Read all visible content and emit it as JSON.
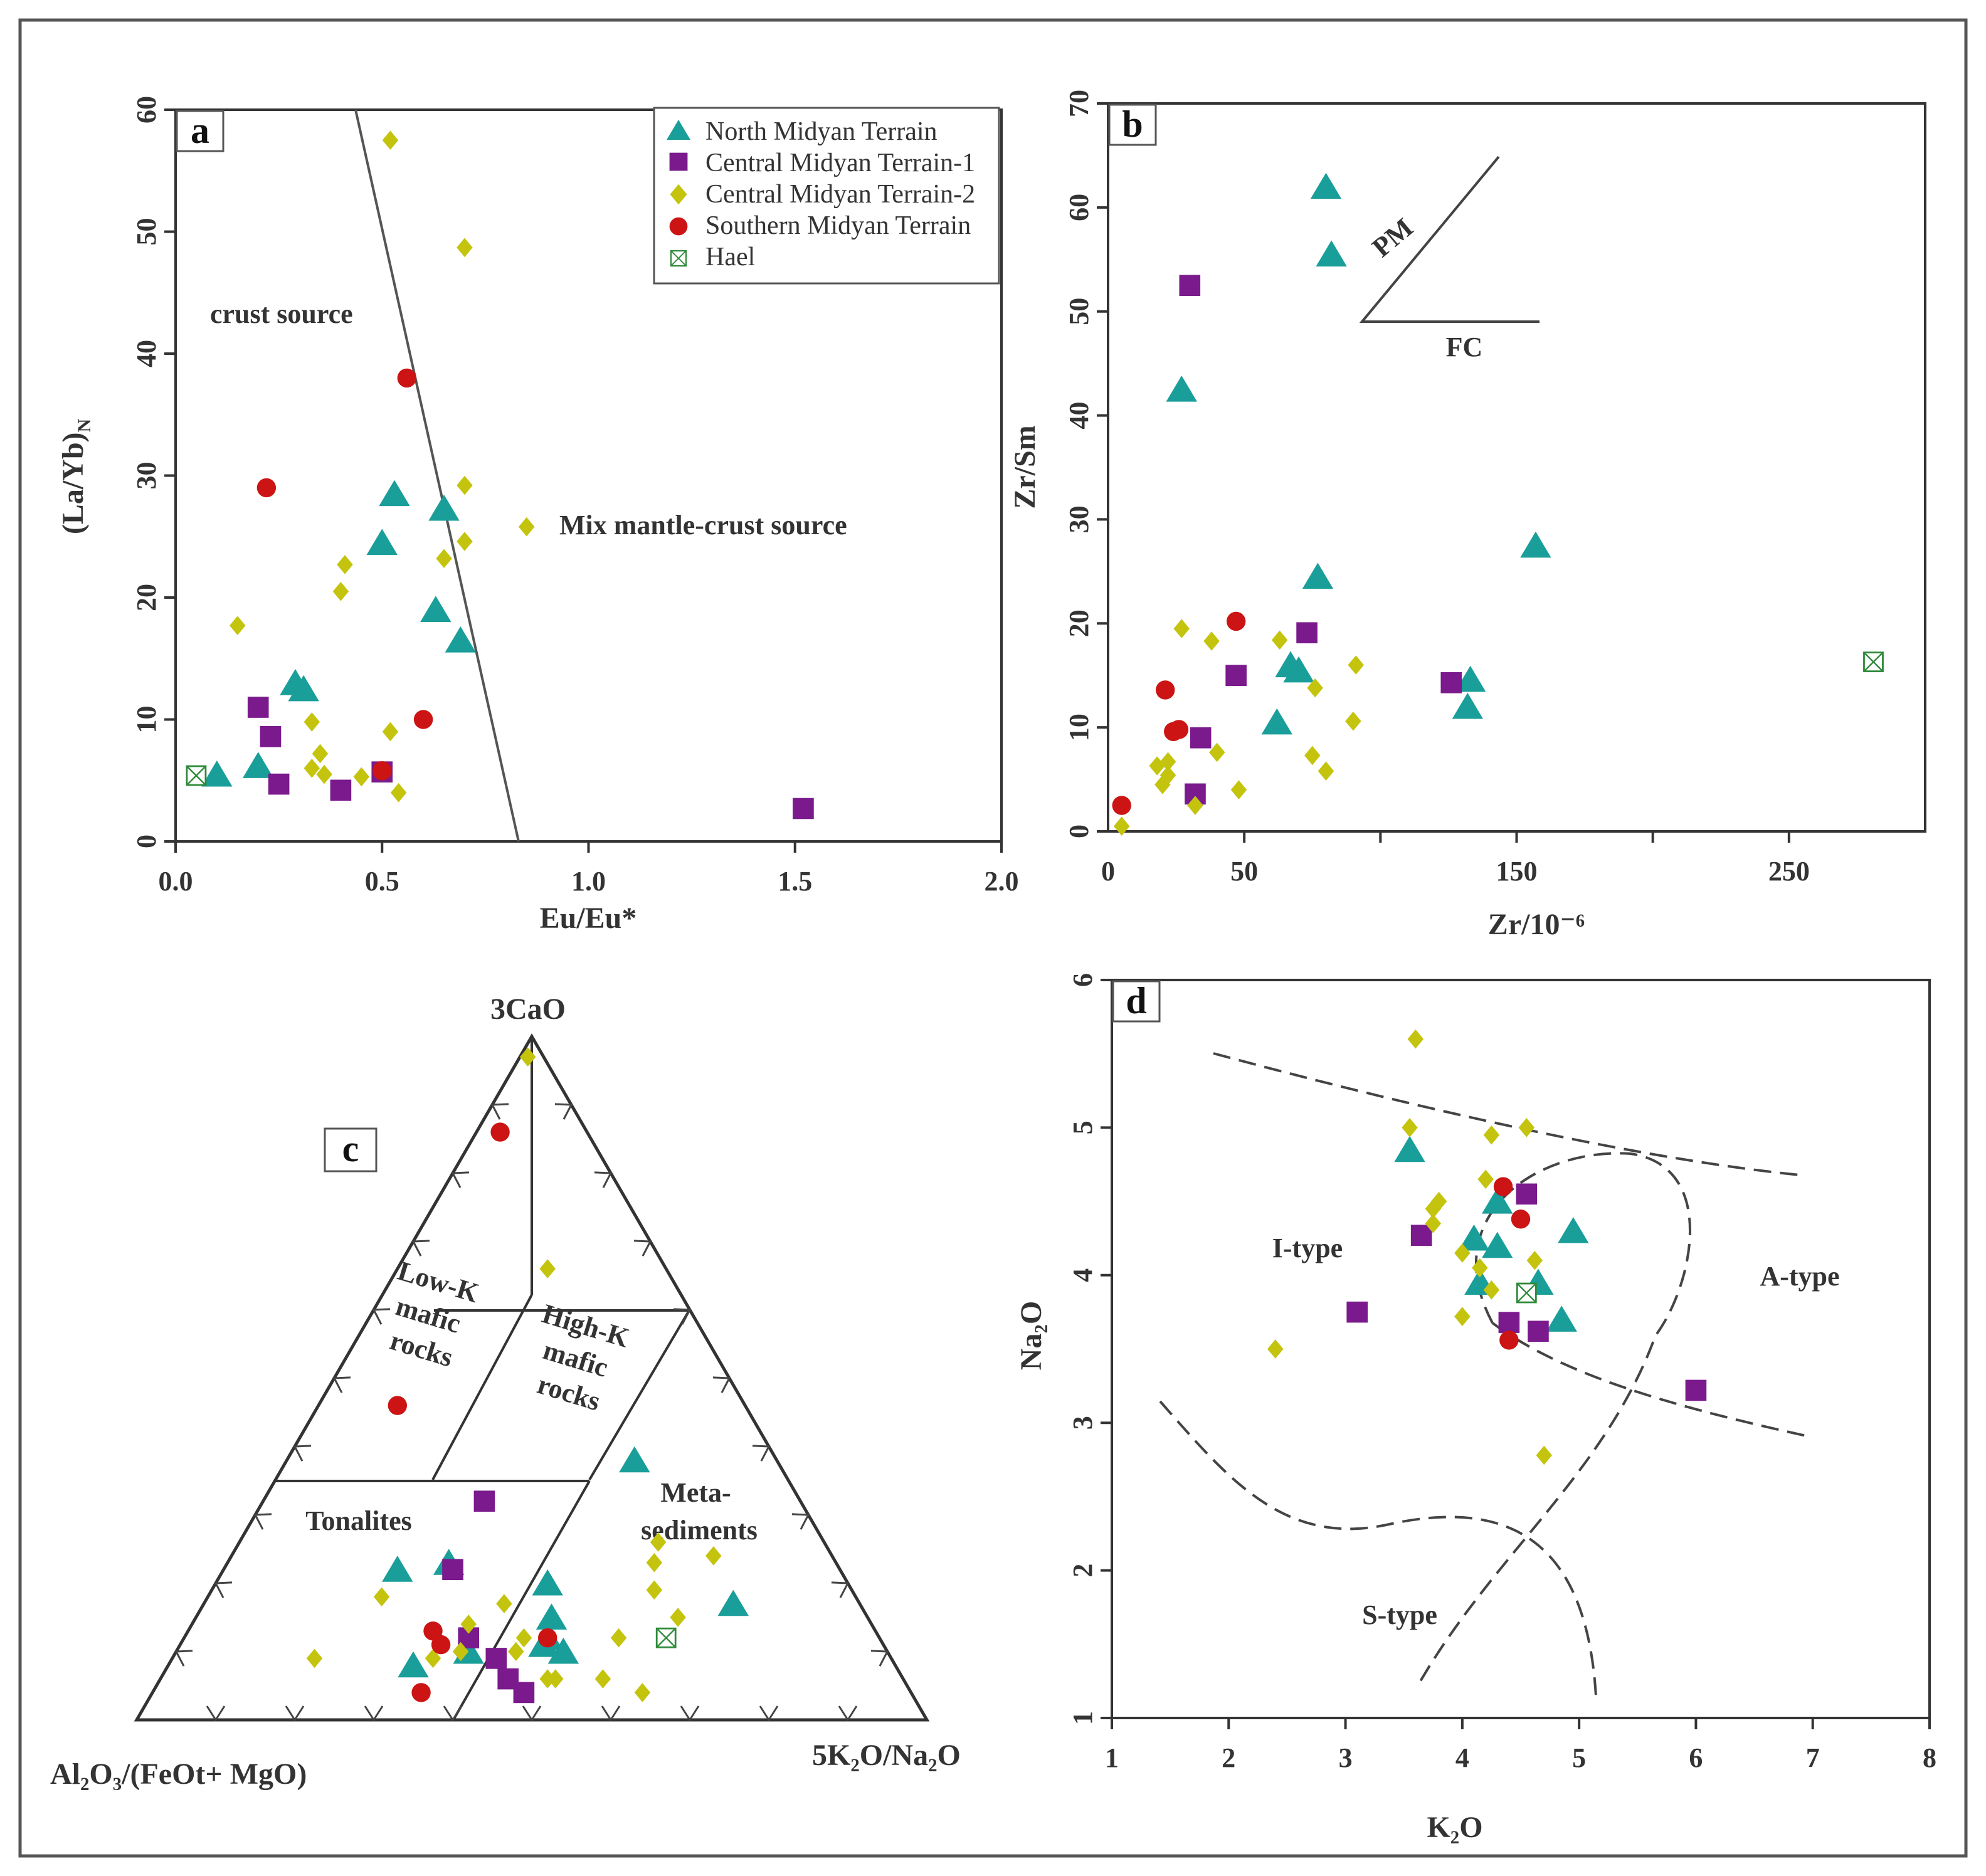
{
  "colors": {
    "north": "#1a9e9a",
    "central1": "#7a1a8c",
    "central2": "#c4c40e",
    "southern": "#cc1414",
    "hael": "#2f8a3a",
    "axis": "#333333"
  },
  "legend": {
    "north": "North Midyan Terrain",
    "central1": "Central Midyan Terrain-1",
    "central2": "Central Midyan Terrain-2",
    "southern": "Southern Midyan Terrain",
    "hael": "Hael"
  },
  "chart_data": [
    {
      "panel": "a",
      "type": "scatter",
      "xlabel": "Eu/Eu*",
      "ylabel": "(La/Yb)",
      "ylabel_sub": "N",
      "xlim": [
        0,
        2
      ],
      "ylim": [
        0,
        60
      ],
      "xticks": [
        "0.0",
        "0.5",
        "1.0",
        "1.5",
        "2.0"
      ],
      "yticks": [
        "0",
        "10",
        "20",
        "30",
        "40",
        "50",
        "60"
      ],
      "boundary_line": [
        [
          0.45,
          60
        ],
        [
          0.84,
          0
        ]
      ],
      "region_labels": {
        "crust": "crust source",
        "mix": "Mix mantle-crust source"
      },
      "series": [
        {
          "name": "North Midyan Terrain",
          "group": "north",
          "points": [
            [
              0.1,
              5.5
            ],
            [
              0.2,
              6.2
            ],
            [
              0.29,
              13
            ],
            [
              0.31,
              12.5
            ],
            [
              0.5,
              24.5
            ],
            [
              0.53,
              28.5
            ],
            [
              0.63,
              19
            ],
            [
              0.65,
              27.3
            ],
            [
              0.69,
              16.5
            ]
          ]
        },
        {
          "name": "Central Midyan Terrain-1",
          "group": "central1",
          "points": [
            [
              0.2,
              11
            ],
            [
              0.23,
              8.6
            ],
            [
              0.25,
              4.7
            ],
            [
              0.4,
              4.2
            ],
            [
              0.5,
              5.7
            ],
            [
              1.52,
              2.7
            ]
          ]
        },
        {
          "name": "Central Midyan Terrain-2",
          "group": "central2",
          "points": [
            [
              0.15,
              17.7
            ],
            [
              0.33,
              9.8
            ],
            [
              0.33,
              6
            ],
            [
              0.35,
              7.2
            ],
            [
              0.36,
              5.5
            ],
            [
              0.4,
              20.5
            ],
            [
              0.41,
              22.7
            ],
            [
              0.45,
              5.3
            ],
            [
              0.52,
              57.5
            ],
            [
              0.52,
              9
            ],
            [
              0.54,
              4
            ],
            [
              0.65,
              23.2
            ],
            [
              0.7,
              29.2
            ],
            [
              0.7,
              24.6
            ],
            [
              0.7,
              48.7
            ],
            [
              0.85,
              25.8
            ]
          ]
        },
        {
          "name": "Southern Midyan Terrain",
          "group": "southern",
          "points": [
            [
              0.22,
              29
            ],
            [
              0.5,
              5.8
            ],
            [
              0.56,
              38
            ],
            [
              0.6,
              10
            ]
          ]
        },
        {
          "name": "Hael",
          "group": "hael",
          "points": [
            [
              0.05,
              5.4
            ]
          ]
        }
      ]
    },
    {
      "panel": "b",
      "type": "scatter",
      "xlabel": "Zr/10⁻⁶",
      "ylabel": "Zr/Sm",
      "xlim": [
        0,
        300
      ],
      "ylim": [
        0,
        70
      ],
      "xticks": [
        "0",
        "50",
        "150",
        "250"
      ],
      "xtick_values": [
        0,
        50,
        150,
        250
      ],
      "xtick_marks": [
        50,
        100,
        150,
        200,
        250
      ],
      "yticks": [
        "0",
        "10",
        "20",
        "30",
        "40",
        "50",
        "60",
        "70"
      ],
      "trend_labels": {
        "pm": "PM",
        "fc": "FC"
      },
      "series": [
        {
          "name": "North Midyan Terrain",
          "group": "north",
          "points": [
            [
              27,
              42.5
            ],
            [
              67,
              16
            ],
            [
              70,
              15.5
            ],
            [
              62,
              10.5
            ],
            [
              77,
              24.5
            ],
            [
              80,
              62
            ],
            [
              82,
              55.5
            ],
            [
              132,
              12
            ],
            [
              133,
              14.6
            ],
            [
              157,
              27.5
            ]
          ]
        },
        {
          "name": "Central Midyan Terrain-1",
          "group": "central1",
          "points": [
            [
              30,
              52.5
            ],
            [
              32,
              3.6
            ],
            [
              34,
              9
            ],
            [
              47,
              15
            ],
            [
              73,
              19.1
            ],
            [
              126,
              14.3
            ]
          ]
        },
        {
          "name": "Central Midyan Terrain-2",
          "group": "central2",
          "points": [
            [
              5,
              0.5
            ],
            [
              18,
              6.3
            ],
            [
              20,
              4.5
            ],
            [
              22,
              6.7
            ],
            [
              22,
              5.4
            ],
            [
              27,
              19.5
            ],
            [
              32,
              2.5
            ],
            [
              38,
              18.3
            ],
            [
              40,
              7.6
            ],
            [
              48,
              4
            ],
            [
              63,
              18.4
            ],
            [
              75,
              7.3
            ],
            [
              76,
              13.8
            ],
            [
              80,
              5.8
            ],
            [
              90,
              10.6
            ],
            [
              91,
              16
            ]
          ]
        },
        {
          "name": "Southern Midyan Terrain",
          "group": "southern",
          "points": [
            [
              5,
              2.5
            ],
            [
              21,
              13.6
            ],
            [
              24,
              9.6
            ],
            [
              26,
              9.8
            ],
            [
              47,
              20.2
            ]
          ]
        },
        {
          "name": "Hael",
          "group": "hael",
          "points": [
            [
              281,
              16.3
            ]
          ]
        }
      ]
    },
    {
      "panel": "c",
      "type": "ternary",
      "apex_labels": {
        "top": "3CaO",
        "left": "Al₂O₃/(FeOt+ MgO)",
        "right": "5K₂O/Na₂O"
      },
      "fields": {
        "low_k": [
          "Low-K",
          "mafic",
          "rocks"
        ],
        "high_k": [
          "High-K",
          "mafic",
          "rocks"
        ],
        "tonalites": "Tonalites",
        "meta": [
          "Meta-",
          "sediments"
        ]
      },
      "series": [
        {
          "name": "North Midyan Terrain",
          "group": "north",
          "points": [
            [
              0.08,
              0.61,
              0.31
            ],
            [
              0.12,
              0.42,
              0.46
            ],
            [
              0.11,
              0.43,
              0.46
            ],
            [
              0.15,
              0.4,
              0.45
            ],
            [
              0.2,
              0.38,
              0.42
            ],
            [
              0.22,
              0.56,
              0.22
            ],
            [
              0.23,
              0.49,
              0.28
            ],
            [
              0.1,
              0.53,
              0.37
            ],
            [
              0.1,
              0.41,
              0.49
            ],
            [
              0.38,
              0.18,
              0.44
            ],
            [
              0.17,
              0.16,
              0.67
            ]
          ]
        },
        {
          "name": "Central Midyan Terrain-1",
          "group": "central1",
          "points": [
            [
              0.12,
              0.52,
              0.36
            ],
            [
              0.09,
              0.5,
              0.41
            ],
            [
              0.06,
              0.5,
              0.44
            ],
            [
              0.04,
              0.49,
              0.47
            ],
            [
              0.22,
              0.49,
              0.29
            ],
            [
              0.32,
              0.4,
              0.28
            ]
          ]
        },
        {
          "name": "Central Midyan Terrain-2",
          "group": "central2",
          "points": [
            [
              0.97,
              0.02,
              0.01
            ],
            [
              0.66,
              0.15,
              0.19
            ],
            [
              0.18,
              0.6,
              0.22
            ],
            [
              0.09,
              0.73,
              0.18
            ],
            [
              0.09,
              0.58,
              0.33
            ],
            [
              0.1,
              0.54,
              0.36
            ],
            [
              0.1,
              0.47,
              0.43
            ],
            [
              0.14,
              0.51,
              0.35
            ],
            [
              0.17,
              0.45,
              0.38
            ],
            [
              0.12,
              0.45,
              0.43
            ],
            [
              0.06,
              0.45,
              0.49
            ],
            [
              0.06,
              0.38,
              0.56
            ],
            [
              0.06,
              0.44,
              0.5
            ],
            [
              0.04,
              0.34,
              0.62
            ],
            [
              0.12,
              0.33,
              0.55
            ],
            [
              0.19,
              0.25,
              0.56
            ],
            [
              0.23,
              0.23,
              0.54
            ],
            [
              0.26,
              0.21,
              0.53
            ],
            [
              0.24,
              0.15,
              0.61
            ],
            [
              0.15,
              0.24,
              0.61
            ]
          ]
        },
        {
          "name": "Southern Midyan Terrain",
          "group": "southern",
          "points": [
            [
              0.86,
              0.11,
              0.03
            ],
            [
              0.46,
              0.44,
              0.1
            ],
            [
              0.13,
              0.56,
              0.31
            ],
            [
              0.12,
              0.42,
              0.46
            ],
            [
              0.04,
              0.62,
              0.34
            ],
            [
              0.11,
              0.56,
              0.33
            ]
          ]
        },
        {
          "name": "Hael",
          "group": "hael",
          "points": [
            [
              0.12,
              0.27,
              0.61
            ]
          ]
        }
      ]
    },
    {
      "panel": "d",
      "type": "scatter",
      "xlabel": "K₂O",
      "ylabel": "Na₂O",
      "xlim": [
        1,
        8
      ],
      "ylim": [
        1,
        6
      ],
      "xticks": [
        "1",
        "2",
        "3",
        "4",
        "5",
        "6",
        "7",
        "8"
      ],
      "yticks": [
        "1",
        "2",
        "3",
        "4",
        "5",
        "6"
      ],
      "region_labels": {
        "i_type": "I-type",
        "a_type": "A-type",
        "s_type": "S-type"
      },
      "series": [
        {
          "name": "North Midyan Terrain",
          "group": "north",
          "points": [
            [
              3.55,
              4.85
            ],
            [
              4.1,
              4.25
            ],
            [
              4.3,
              4.5
            ],
            [
              4.3,
              4.2
            ],
            [
              4.15,
              3.95
            ],
            [
              4.65,
              3.95
            ],
            [
              4.85,
              3.7
            ],
            [
              4.95,
              4.3
            ]
          ]
        },
        {
          "name": "Central Midyan Terrain-1",
          "group": "central1",
          "points": [
            [
              3.1,
              3.75
            ],
            [
              3.65,
              4.27
            ],
            [
              4.4,
              3.68
            ],
            [
              4.55,
              4.55
            ],
            [
              4.65,
              3.62
            ],
            [
              6,
              3.22
            ]
          ]
        },
        {
          "name": "Central Midyan Terrain-2",
          "group": "central2",
          "points": [
            [
              2.4,
              3.5
            ],
            [
              3.6,
              5.6
            ],
            [
              3.55,
              5.0
            ],
            [
              3.75,
              4.45
            ],
            [
              3.8,
              4.5
            ],
            [
              3.75,
              4.35
            ],
            [
              4.0,
              4.15
            ],
            [
              4.15,
              4.05
            ],
            [
              4.0,
              3.72
            ],
            [
              4.25,
              3.9
            ],
            [
              4.2,
              4.65
            ],
            [
              4.25,
              4.95
            ],
            [
              4.55,
              5.0
            ],
            [
              4.62,
              4.1
            ],
            [
              4.7,
              2.78
            ]
          ]
        },
        {
          "name": "Southern Midyan Terrain",
          "group": "southern",
          "points": [
            [
              4.35,
              4.6
            ],
            [
              4.5,
              4.38
            ],
            [
              4.4,
              3.56
            ]
          ]
        },
        {
          "name": "Hael",
          "group": "hael",
          "points": [
            [
              4.55,
              3.88
            ]
          ]
        }
      ]
    }
  ]
}
